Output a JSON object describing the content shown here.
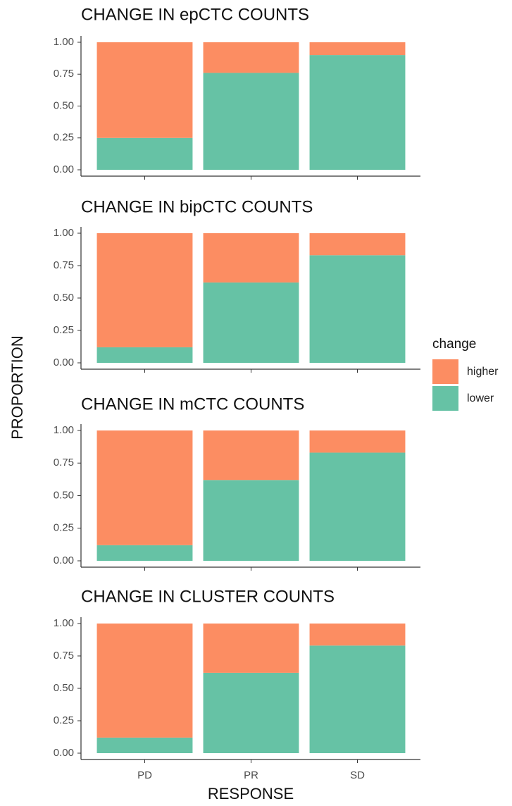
{
  "ylabel": "PROPORTION",
  "legend_title": "change",
  "chart_data": [
    {
      "type": "bar",
      "stacked": true,
      "title": "CHANGE IN epCTC COUNTS",
      "series": [
        {
          "name": "higher",
          "color": "#fc8d62",
          "values": [
            0.75,
            0.24,
            0.1
          ]
        },
        {
          "name": "lower",
          "color": "#66c2a5",
          "values": [
            0.25,
            0.76,
            0.9
          ]
        }
      ],
      "ylim": [
        0,
        1
      ],
      "yticks": [
        {
          "value": 0,
          "label": "0.00"
        },
        {
          "value": 0.25,
          "label": "0.25"
        },
        {
          "value": 0.5,
          "label": "0.50"
        },
        {
          "value": 0.75,
          "label": "0.75"
        },
        {
          "value": 1,
          "label": "1.00"
        }
      ]
    },
    {
      "type": "bar",
      "stacked": true,
      "title": "CHANGE IN bipCTC COUNTS",
      "series": [
        {
          "name": "higher",
          "color": "#fc8d62",
          "values": [
            0.88,
            0.38,
            0.17
          ]
        },
        {
          "name": "lower",
          "color": "#66c2a5",
          "values": [
            0.12,
            0.62,
            0.83
          ]
        }
      ],
      "ylim": [
        0,
        1
      ],
      "yticks": [
        {
          "value": 0,
          "label": "0.00"
        },
        {
          "value": 0.25,
          "label": "0.25"
        },
        {
          "value": 0.5,
          "label": "0.50"
        },
        {
          "value": 0.75,
          "label": "0.75"
        },
        {
          "value": 1,
          "label": "1.00"
        }
      ]
    },
    {
      "type": "bar",
      "stacked": true,
      "title": "CHANGE IN mCTC COUNTS",
      "series": [
        {
          "name": "higher",
          "color": "#fc8d62",
          "values": [
            0.88,
            0.38,
            0.17
          ]
        },
        {
          "name": "lower",
          "color": "#66c2a5",
          "values": [
            0.12,
            0.62,
            0.83
          ]
        }
      ],
      "ylim": [
        0,
        1
      ],
      "yticks": [
        {
          "value": 0,
          "label": "0.00"
        },
        {
          "value": 0.25,
          "label": "0.25"
        },
        {
          "value": 0.5,
          "label": "0.50"
        },
        {
          "value": 0.75,
          "label": "0.75"
        },
        {
          "value": 1,
          "label": "1.00"
        }
      ]
    },
    {
      "type": "bar",
      "stacked": true,
      "title": "CHANGE IN CLUSTER COUNTS",
      "xlabel": "RESPONSE",
      "categories": [
        "PD",
        "PR",
        "SD"
      ],
      "series": [
        {
          "name": "higher",
          "color": "#fc8d62",
          "values": [
            0.88,
            0.38,
            0.17
          ]
        },
        {
          "name": "lower",
          "color": "#66c2a5",
          "values": [
            0.12,
            0.62,
            0.83
          ]
        }
      ],
      "ylim": [
        0,
        1
      ],
      "yticks": [
        {
          "value": 0,
          "label": "0.00"
        },
        {
          "value": 0.25,
          "label": "0.25"
        },
        {
          "value": 0.5,
          "label": "0.50"
        },
        {
          "value": 0.75,
          "label": "0.75"
        },
        {
          "value": 1,
          "label": "1.00"
        }
      ]
    }
  ]
}
